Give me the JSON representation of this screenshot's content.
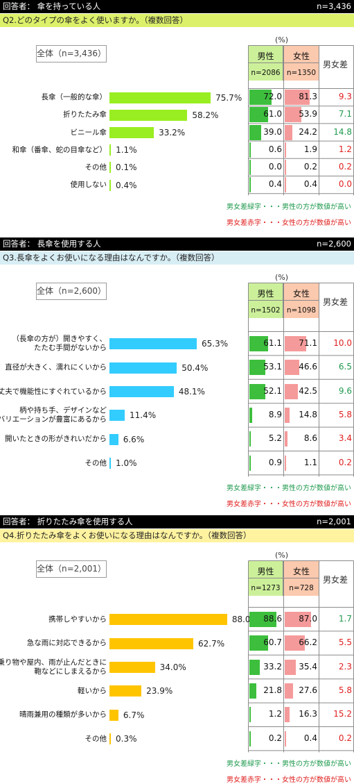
{
  "colors": {
    "green_text": "#1f9a4e",
    "red_text": "#e02020",
    "male_bar": "#3dbf3d",
    "female_bar": "#f59a9a",
    "male_head": "#ccf09a",
    "female_head": "#fbc9ae"
  },
  "legend": {
    "green": "男女差緑字・・・男性の方が数値が高い",
    "red": "男女差赤字・・・女性の方が数値が高い"
  },
  "chart_data": [
    {
      "type": "bar",
      "respondent": "回答者： 傘を持っている人",
      "n_label": "n=3,436",
      "question": "Q2.どのタイプの傘をよく使いますか。（複数回答）",
      "question_bg": "#ddf06a",
      "total_label": "全体（n=3,436）",
      "unit": "(%)",
      "male_head": "男性",
      "female_head": "女性",
      "male_n": "n=2086",
      "female_n": "n=1350",
      "diff_head": "男女差",
      "bar_color": "#99ee22",
      "xlim": [
        0,
        100
      ],
      "rows": [
        {
          "label": "長傘（一般的な傘）",
          "total": 75.7,
          "total_text": "75.7%",
          "male": 72.0,
          "male_text": "72.0",
          "female": 81.3,
          "female_text": "81.3",
          "diff": "9.3",
          "diff_color": "red"
        },
        {
          "label": "折りたたみ傘",
          "total": 58.2,
          "total_text": "58.2%",
          "male": 61.0,
          "male_text": "61.0",
          "female": 53.9,
          "female_text": "53.9",
          "diff": "7.1",
          "diff_color": "green"
        },
        {
          "label": "ビニール傘",
          "total": 33.2,
          "total_text": "33.2%",
          "male": 39.0,
          "male_text": "39.0",
          "female": 24.2,
          "female_text": "24.2",
          "diff": "14.8",
          "diff_color": "green"
        },
        {
          "label": "和傘（番傘、蛇の目傘など）",
          "total": 1.1,
          "total_text": "1.1%",
          "male": 0.6,
          "male_text": "0.6",
          "female": 1.9,
          "female_text": "1.9",
          "diff": "1.2",
          "diff_color": "red"
        },
        {
          "label": "その他",
          "total": 0.1,
          "total_text": "0.1%",
          "male": 0.0,
          "male_text": "0.0",
          "female": 0.2,
          "female_text": "0.2",
          "diff": "0.2",
          "diff_color": "red"
        },
        {
          "label": "使用しない",
          "total": 0.4,
          "total_text": "0.4%",
          "male": 0.4,
          "male_text": "0.4",
          "female": 0.4,
          "female_text": "0.4",
          "diff": "0.0",
          "diff_color": "red"
        }
      ]
    },
    {
      "type": "bar",
      "respondent": "回答者： 長傘を使用する人",
      "n_label": "n=2,600",
      "question": "Q3.長傘をよくお使いになる理由はなんですか。（複数回答）",
      "question_bg": "#d8eef5",
      "total_label": "全体（n=2,600）",
      "unit": "(%)",
      "male_head": "男性",
      "female_head": "女性",
      "male_n": "n=1502",
      "female_n": "n=1098",
      "diff_head": "男女差",
      "bar_color": "#33ccff",
      "xlim": [
        0,
        100
      ],
      "rows": [
        {
          "label": "（長傘の方が）開きやすく、\nたたむ手間がないから",
          "total": 65.3,
          "total_text": "65.3%",
          "male": 61.1,
          "male_text": "61.1",
          "female": 71.1,
          "female_text": "71.1",
          "diff": "10.0",
          "diff_color": "red"
        },
        {
          "label": "直径が大きく、濡れにくいから",
          "total": 50.4,
          "total_text": "50.4%",
          "male": 53.1,
          "male_text": "53.1",
          "female": 46.6,
          "female_text": "46.6",
          "diff": "6.5",
          "diff_color": "green"
        },
        {
          "label": "丈夫で機能性にすぐれているから",
          "total": 48.1,
          "total_text": "48.1%",
          "male": 52.1,
          "male_text": "52.1",
          "female": 42.5,
          "female_text": "42.5",
          "diff": "9.6",
          "diff_color": "green"
        },
        {
          "label": "柄や持ち手、デザインなど\nバリエーションが豊富にあるから",
          "total": 11.4,
          "total_text": "11.4%",
          "male": 8.9,
          "male_text": "8.9",
          "female": 14.8,
          "female_text": "14.8",
          "diff": "5.8",
          "diff_color": "red"
        },
        {
          "label": "開いたときの形がきれいだから",
          "total": 6.6,
          "total_text": "6.6%",
          "male": 5.2,
          "male_text": "5.2",
          "female": 8.6,
          "female_text": "8.6",
          "diff": "3.4",
          "diff_color": "red"
        },
        {
          "label": "その他",
          "total": 1.0,
          "total_text": "1.0%",
          "male": 0.9,
          "male_text": "0.9",
          "female": 1.1,
          "female_text": "1.1",
          "diff": "0.2",
          "diff_color": "red"
        }
      ]
    },
    {
      "type": "bar",
      "respondent": "回答者： 折りたたみ傘を使用する人",
      "n_label": "n=2,001",
      "question": "Q4.折りたたみ傘をよくお使いになる理由はなんですか。（複数回答）",
      "question_bg": "#fff3a0",
      "total_label": "全体（n=2,001）",
      "unit": "(%)",
      "male_head": "男性",
      "female_head": "女性",
      "male_n": "n=1273",
      "female_n": "n=728",
      "diff_head": "男女差",
      "bar_color": "#ffc400",
      "xlim": [
        0,
        100
      ],
      "rows": [
        {
          "label": "携帯しやすいから",
          "total": 88.0,
          "total_text": "88.0%",
          "male": 88.6,
          "male_text": "88.6",
          "female": 87.0,
          "female_text": "87.0",
          "diff": "1.7",
          "diff_color": "green"
        },
        {
          "label": "急な雨に対応できるから",
          "total": 62.7,
          "total_text": "62.7%",
          "male": 60.7,
          "male_text": "60.7",
          "female": 66.2,
          "female_text": "66.2",
          "diff": "5.5",
          "diff_color": "red"
        },
        {
          "label": "乗り物や屋内、雨が止んだときに\n鞄などにしまえるから",
          "total": 34.0,
          "total_text": "34.0%",
          "male": 33.2,
          "male_text": "33.2",
          "female": 35.4,
          "female_text": "35.4",
          "diff": "2.3",
          "diff_color": "red"
        },
        {
          "label": "軽いから",
          "total": 23.9,
          "total_text": "23.9%",
          "male": 21.8,
          "male_text": "21.8",
          "female": 27.6,
          "female_text": "27.6",
          "diff": "5.8",
          "diff_color": "red"
        },
        {
          "label": "晴雨兼用の種類が多いから",
          "total": 6.7,
          "total_text": "6.7%",
          "male": 1.2,
          "male_text": "1.2",
          "female": 16.3,
          "female_text": "16.3",
          "diff": "15.2",
          "diff_color": "red"
        },
        {
          "label": "その他",
          "total": 0.3,
          "total_text": "0.3%",
          "male": 0.2,
          "male_text": "0.2",
          "female": 0.4,
          "female_text": "0.4",
          "diff": "0.2",
          "diff_color": "red"
        }
      ]
    }
  ]
}
